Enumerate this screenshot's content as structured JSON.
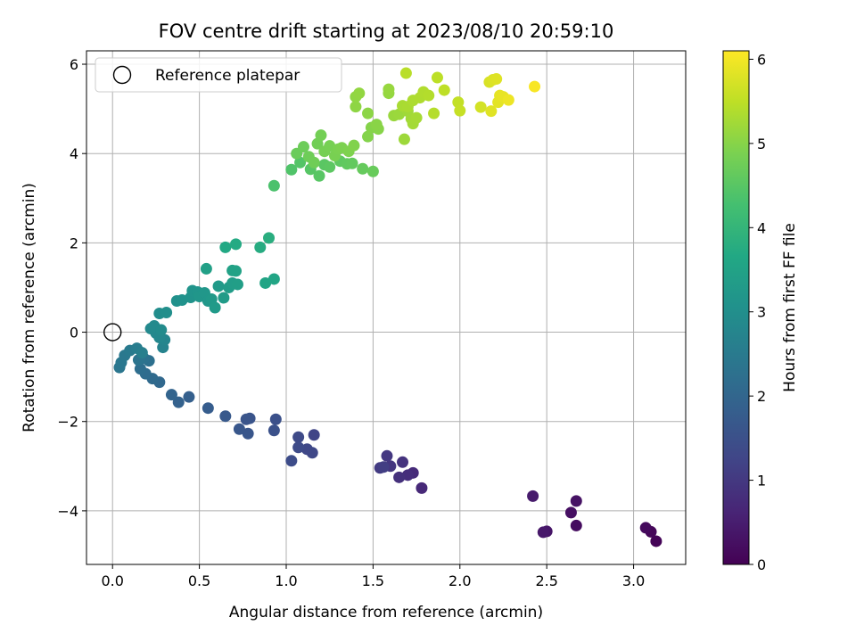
{
  "chart_data": {
    "type": "scatter",
    "title": "FOV centre drift starting at 2023/08/10 20:59:10",
    "xlabel": "Angular distance from reference (arcmin)",
    "ylabel": "Rotation from reference (arcmin)",
    "xlim": [
      -0.15,
      3.3
    ],
    "ylim": [
      -5.2,
      6.3
    ],
    "xticks": [
      0.0,
      0.5,
      1.0,
      1.5,
      2.0,
      2.5,
      3.0
    ],
    "xtick_labels": [
      "0.0",
      "0.5",
      "1.0",
      "1.5",
      "2.0",
      "2.5",
      "3.0"
    ],
    "yticks": [
      -4,
      -2,
      0,
      2,
      4,
      6
    ],
    "ytick_labels": [
      "−4",
      "−2",
      "0",
      "2",
      "4",
      "6"
    ],
    "grid": true,
    "legend": {
      "position": "top-left",
      "entries": [
        "Reference platepar"
      ]
    },
    "colormap": "viridis",
    "colorbar": {
      "label": "Hours from first FF file",
      "range": [
        0,
        6.1
      ],
      "ticks": [
        0,
        1,
        2,
        3,
        4,
        5,
        6
      ],
      "tick_labels": [
        "0",
        "1",
        "2",
        "3",
        "4",
        "5",
        "6"
      ]
    },
    "reference_point": {
      "x": 0.0,
      "y": 0.0
    },
    "points": [
      {
        "x": 3.13,
        "y": -4.68,
        "h": 0.05
      },
      {
        "x": 3.1,
        "y": -4.47,
        "h": 0.1
      },
      {
        "x": 3.07,
        "y": -4.38,
        "h": 0.15
      },
      {
        "x": 2.67,
        "y": -4.33,
        "h": 0.2
      },
      {
        "x": 2.64,
        "y": -4.04,
        "h": 0.25
      },
      {
        "x": 2.67,
        "y": -3.78,
        "h": 0.3
      },
      {
        "x": 2.5,
        "y": -4.46,
        "h": 0.35
      },
      {
        "x": 2.48,
        "y": -4.48,
        "h": 0.4
      },
      {
        "x": 2.42,
        "y": -3.67,
        "h": 0.45
      },
      {
        "x": 1.78,
        "y": -3.49,
        "h": 0.7
      },
      {
        "x": 1.73,
        "y": -3.15,
        "h": 0.75
      },
      {
        "x": 1.7,
        "y": -3.2,
        "h": 0.8
      },
      {
        "x": 1.65,
        "y": -3.25,
        "h": 0.85
      },
      {
        "x": 1.67,
        "y": -2.91,
        "h": 0.9
      },
      {
        "x": 1.6,
        "y": -3.0,
        "h": 0.95
      },
      {
        "x": 1.58,
        "y": -2.77,
        "h": 1.0
      },
      {
        "x": 1.54,
        "y": -3.04,
        "h": 1.05
      },
      {
        "x": 1.56,
        "y": -3.02,
        "h": 1.1
      },
      {
        "x": 1.16,
        "y": -2.3,
        "h": 1.25
      },
      {
        "x": 1.15,
        "y": -2.7,
        "h": 1.3
      },
      {
        "x": 1.12,
        "y": -2.62,
        "h": 1.32
      },
      {
        "x": 1.07,
        "y": -2.35,
        "h": 1.35
      },
      {
        "x": 1.07,
        "y": -2.58,
        "h": 1.38
      },
      {
        "x": 1.03,
        "y": -2.88,
        "h": 1.4
      },
      {
        "x": 0.94,
        "y": -1.95,
        "h": 1.5
      },
      {
        "x": 0.93,
        "y": -2.2,
        "h": 1.52
      },
      {
        "x": 0.79,
        "y": -1.93,
        "h": 1.58
      },
      {
        "x": 0.77,
        "y": -1.95,
        "h": 1.6
      },
      {
        "x": 0.78,
        "y": -2.27,
        "h": 1.62
      },
      {
        "x": 0.73,
        "y": -2.17,
        "h": 1.65
      },
      {
        "x": 0.65,
        "y": -1.88,
        "h": 1.7
      },
      {
        "x": 0.55,
        "y": -1.7,
        "h": 1.78
      },
      {
        "x": 0.44,
        "y": -1.45,
        "h": 1.85
      },
      {
        "x": 0.38,
        "y": -1.57,
        "h": 1.9
      },
      {
        "x": 0.34,
        "y": -1.4,
        "h": 1.95
      },
      {
        "x": 0.27,
        "y": -1.12,
        "h": 2.05
      },
      {
        "x": 0.23,
        "y": -1.04,
        "h": 2.1
      },
      {
        "x": 0.19,
        "y": -0.93,
        "h": 2.15
      },
      {
        "x": 0.16,
        "y": -0.82,
        "h": 2.2
      },
      {
        "x": 0.21,
        "y": -0.64,
        "h": 2.25
      },
      {
        "x": 0.18,
        "y": -0.58,
        "h": 2.3
      },
      {
        "x": 0.15,
        "y": -0.62,
        "h": 2.35
      },
      {
        "x": 0.04,
        "y": -0.79,
        "h": 2.4
      },
      {
        "x": 0.05,
        "y": -0.68,
        "h": 2.42
      },
      {
        "x": 0.07,
        "y": -0.52,
        "h": 2.45
      },
      {
        "x": 0.1,
        "y": -0.41,
        "h": 2.5
      },
      {
        "x": 0.14,
        "y": -0.36,
        "h": 2.55
      },
      {
        "x": 0.17,
        "y": -0.46,
        "h": 2.6
      },
      {
        "x": 0.29,
        "y": -0.34,
        "h": 2.7
      },
      {
        "x": 0.3,
        "y": -0.17,
        "h": 2.75
      },
      {
        "x": 0.27,
        "y": -0.12,
        "h": 2.8
      },
      {
        "x": 0.25,
        "y": -0.02,
        "h": 2.82
      },
      {
        "x": 0.22,
        "y": 0.08,
        "h": 2.85
      },
      {
        "x": 0.24,
        "y": 0.14,
        "h": 2.88
      },
      {
        "x": 0.28,
        "y": 0.05,
        "h": 2.9
      },
      {
        "x": 0.27,
        "y": 0.42,
        "h": 2.95
      },
      {
        "x": 0.31,
        "y": 0.44,
        "h": 3.0
      },
      {
        "x": 0.37,
        "y": 0.7,
        "h": 3.05
      },
      {
        "x": 0.4,
        "y": 0.72,
        "h": 3.08
      },
      {
        "x": 0.45,
        "y": 0.78,
        "h": 3.1
      },
      {
        "x": 0.46,
        "y": 0.93,
        "h": 3.12
      },
      {
        "x": 0.49,
        "y": 0.9,
        "h": 3.15
      },
      {
        "x": 0.5,
        "y": 0.8,
        "h": 3.18
      },
      {
        "x": 0.53,
        "y": 0.88,
        "h": 3.2
      },
      {
        "x": 0.55,
        "y": 0.7,
        "h": 3.22
      },
      {
        "x": 0.57,
        "y": 0.74,
        "h": 3.25
      },
      {
        "x": 0.59,
        "y": 0.55,
        "h": 3.28
      },
      {
        "x": 0.61,
        "y": 1.03,
        "h": 3.3
      },
      {
        "x": 0.64,
        "y": 0.77,
        "h": 3.32
      },
      {
        "x": 0.67,
        "y": 1.0,
        "h": 3.35
      },
      {
        "x": 0.69,
        "y": 1.1,
        "h": 3.38
      },
      {
        "x": 0.72,
        "y": 1.07,
        "h": 3.4
      },
      {
        "x": 0.54,
        "y": 1.42,
        "h": 3.45
      },
      {
        "x": 0.69,
        "y": 1.38,
        "h": 3.48
      },
      {
        "x": 0.71,
        "y": 1.37,
        "h": 3.5
      },
      {
        "x": 0.88,
        "y": 1.1,
        "h": 3.55
      },
      {
        "x": 0.93,
        "y": 1.19,
        "h": 3.58
      },
      {
        "x": 0.65,
        "y": 1.9,
        "h": 3.65
      },
      {
        "x": 0.71,
        "y": 1.97,
        "h": 3.7
      },
      {
        "x": 0.85,
        "y": 1.9,
        "h": 3.75
      },
      {
        "x": 0.9,
        "y": 2.11,
        "h": 3.8
      },
      {
        "x": 0.93,
        "y": 3.28,
        "h": 4.35
      },
      {
        "x": 1.03,
        "y": 3.64,
        "h": 4.4
      },
      {
        "x": 1.08,
        "y": 3.8,
        "h": 4.45
      },
      {
        "x": 1.14,
        "y": 3.65,
        "h": 4.48
      },
      {
        "x": 1.19,
        "y": 3.5,
        "h": 4.5
      },
      {
        "x": 1.22,
        "y": 3.75,
        "h": 4.52
      },
      {
        "x": 1.25,
        "y": 3.7,
        "h": 4.55
      },
      {
        "x": 1.31,
        "y": 3.83,
        "h": 4.58
      },
      {
        "x": 1.35,
        "y": 3.77,
        "h": 4.6
      },
      {
        "x": 1.38,
        "y": 3.78,
        "h": 4.62
      },
      {
        "x": 1.44,
        "y": 3.66,
        "h": 4.65
      },
      {
        "x": 1.5,
        "y": 3.6,
        "h": 4.68
      },
      {
        "x": 1.06,
        "y": 4.0,
        "h": 4.7
      },
      {
        "x": 1.1,
        "y": 4.15,
        "h": 4.72
      },
      {
        "x": 1.13,
        "y": 3.93,
        "h": 4.74
      },
      {
        "x": 1.16,
        "y": 3.8,
        "h": 4.76
      },
      {
        "x": 1.18,
        "y": 4.22,
        "h": 4.78
      },
      {
        "x": 1.2,
        "y": 4.41,
        "h": 4.8
      },
      {
        "x": 1.22,
        "y": 4.05,
        "h": 4.82
      },
      {
        "x": 1.25,
        "y": 4.17,
        "h": 4.84
      },
      {
        "x": 1.28,
        "y": 3.95,
        "h": 4.86
      },
      {
        "x": 1.3,
        "y": 4.1,
        "h": 4.88
      },
      {
        "x": 1.32,
        "y": 4.13,
        "h": 4.9
      },
      {
        "x": 1.36,
        "y": 4.05,
        "h": 4.92
      },
      {
        "x": 1.39,
        "y": 4.18,
        "h": 4.94
      },
      {
        "x": 1.47,
        "y": 4.38,
        "h": 4.96
      },
      {
        "x": 1.49,
        "y": 4.58,
        "h": 4.98
      },
      {
        "x": 1.53,
        "y": 4.55,
        "h": 5.0
      },
      {
        "x": 1.52,
        "y": 4.65,
        "h": 5.02
      },
      {
        "x": 1.47,
        "y": 4.9,
        "h": 5.04
      },
      {
        "x": 1.4,
        "y": 5.05,
        "h": 5.06
      },
      {
        "x": 1.4,
        "y": 5.27,
        "h": 5.08
      },
      {
        "x": 1.42,
        "y": 5.35,
        "h": 5.1
      },
      {
        "x": 1.59,
        "y": 5.35,
        "h": 5.12
      },
      {
        "x": 1.59,
        "y": 5.44,
        "h": 5.14
      },
      {
        "x": 1.62,
        "y": 4.85,
        "h": 5.16
      },
      {
        "x": 1.65,
        "y": 4.88,
        "h": 5.18
      },
      {
        "x": 1.68,
        "y": 4.32,
        "h": 5.2
      },
      {
        "x": 1.7,
        "y": 4.95,
        "h": 5.22
      },
      {
        "x": 1.72,
        "y": 4.78,
        "h": 5.24
      },
      {
        "x": 1.73,
        "y": 4.67,
        "h": 5.26
      },
      {
        "x": 1.75,
        "y": 4.8,
        "h": 5.28
      },
      {
        "x": 1.67,
        "y": 5.07,
        "h": 5.3
      },
      {
        "x": 1.7,
        "y": 5.05,
        "h": 5.32
      },
      {
        "x": 1.73,
        "y": 5.19,
        "h": 5.34
      },
      {
        "x": 1.77,
        "y": 5.25,
        "h": 5.36
      },
      {
        "x": 1.79,
        "y": 5.38,
        "h": 5.38
      },
      {
        "x": 1.82,
        "y": 5.3,
        "h": 5.4
      },
      {
        "x": 1.85,
        "y": 4.9,
        "h": 5.42
      },
      {
        "x": 1.69,
        "y": 5.8,
        "h": 5.45
      },
      {
        "x": 1.87,
        "y": 5.7,
        "h": 5.48
      },
      {
        "x": 1.91,
        "y": 5.42,
        "h": 5.5
      },
      {
        "x": 1.99,
        "y": 5.15,
        "h": 5.55
      },
      {
        "x": 2.0,
        "y": 4.96,
        "h": 5.58
      },
      {
        "x": 2.12,
        "y": 5.04,
        "h": 5.7
      },
      {
        "x": 2.17,
        "y": 5.6,
        "h": 5.75
      },
      {
        "x": 2.19,
        "y": 5.65,
        "h": 5.78
      },
      {
        "x": 2.21,
        "y": 5.67,
        "h": 5.8
      },
      {
        "x": 2.18,
        "y": 4.95,
        "h": 5.82
      },
      {
        "x": 2.22,
        "y": 5.15,
        "h": 5.85
      },
      {
        "x": 2.23,
        "y": 5.3,
        "h": 5.88
      },
      {
        "x": 2.25,
        "y": 5.27,
        "h": 5.9
      },
      {
        "x": 2.28,
        "y": 5.2,
        "h": 5.95
      },
      {
        "x": 2.43,
        "y": 5.5,
        "h": 6.05
      }
    ]
  }
}
